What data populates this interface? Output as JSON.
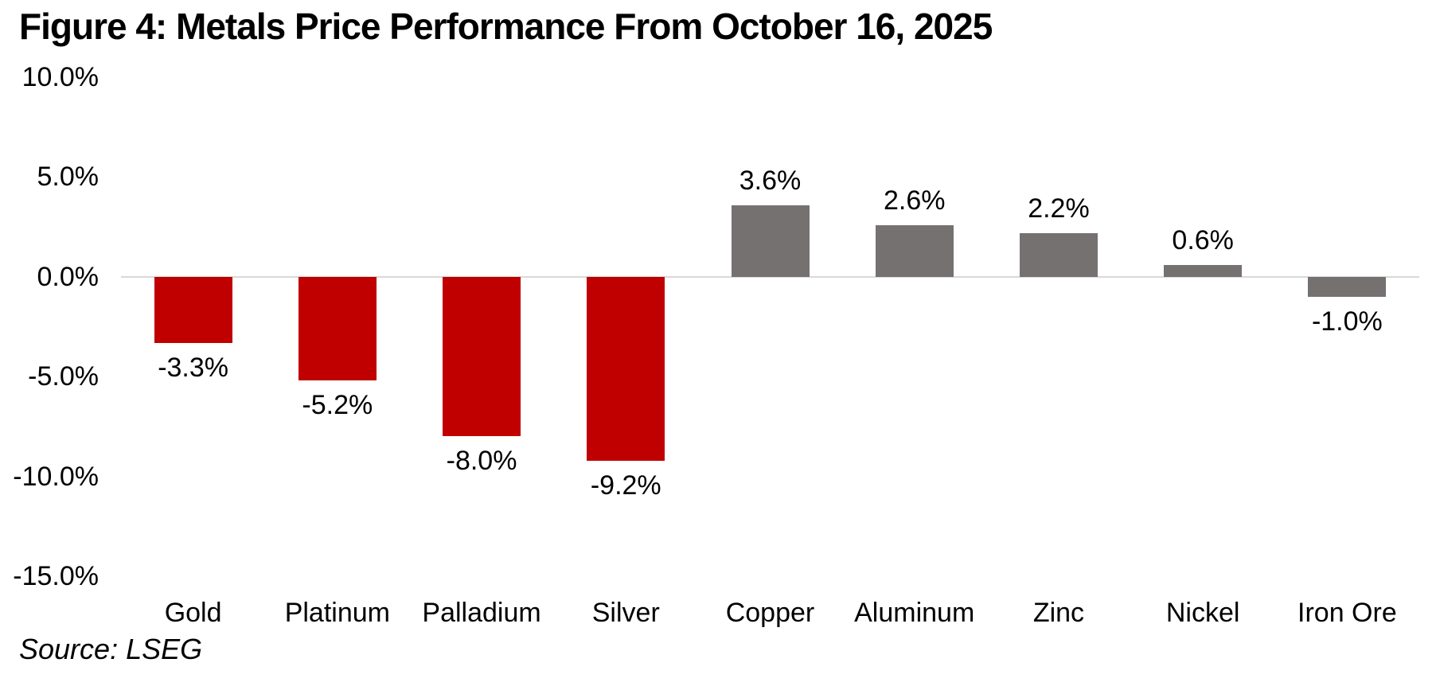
{
  "title": "Figure 4: Metals Price Performance From October 16, 2025",
  "source": "Source: LSEG",
  "colors": {
    "precious_metals_bar": "#C00000",
    "base_metals_bar": "#767171",
    "axis_line": "#D9D9D9",
    "text": "#000000",
    "background": "#FFFFFF"
  },
  "chart_data": {
    "type": "bar",
    "title": "Figure 4: Metals Price Performance From October 16, 2025",
    "categories": [
      "Gold",
      "Platinum",
      "Palladium",
      "Silver",
      "Copper",
      "Aluminum",
      "Zinc",
      "Nickel",
      "Iron Ore"
    ],
    "values": [
      -3.3,
      -5.2,
      -8.0,
      -9.2,
      3.6,
      2.6,
      2.2,
      0.6,
      -1.0
    ],
    "data_labels": [
      "-3.3%",
      "-5.2%",
      "-8.0%",
      "-9.2%",
      "3.6%",
      "2.6%",
      "2.2%",
      "0.6%",
      "-1.0%"
    ],
    "bar_colors": [
      "#C00000",
      "#C00000",
      "#C00000",
      "#C00000",
      "#767171",
      "#767171",
      "#767171",
      "#767171",
      "#767171"
    ],
    "xlabel": "",
    "ylabel": "",
    "ylim": [
      -15,
      10
    ],
    "y_ticks": [
      {
        "value": 10,
        "label": "10.0%"
      },
      {
        "value": 5,
        "label": "5.0%"
      },
      {
        "value": 0,
        "label": "0.0%"
      },
      {
        "value": -5,
        "label": "-5.0%"
      },
      {
        "value": -10,
        "label": "-10.0%"
      },
      {
        "value": -15,
        "label": "-15.0%"
      }
    ],
    "grid": false,
    "legend": "none",
    "zero_line_color": "#D9D9D9",
    "source": "Source: LSEG"
  }
}
